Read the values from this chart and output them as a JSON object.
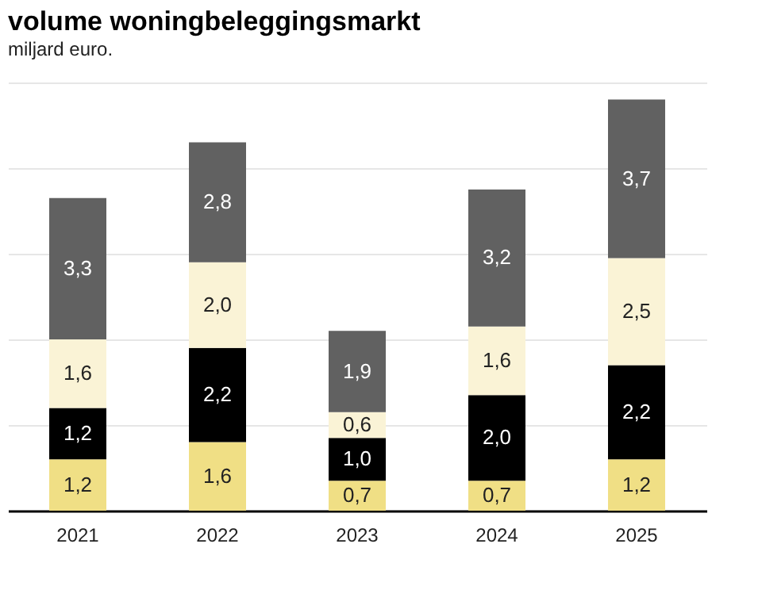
{
  "chart_data": {
    "type": "bar",
    "stacked": true,
    "title": "volume woningbeleggingsmarkt",
    "subtitle": "miljard euro.",
    "categories": [
      "2021",
      "2022",
      "2023",
      "2024",
      "2025"
    ],
    "series": [
      {
        "color": "#f0df85",
        "values": [
          1.2,
          1.6,
          0.7,
          0.7,
          1.2
        ],
        "value_labels": [
          "1,2",
          "1,6",
          "0,7",
          "0,7",
          "1,2"
        ]
      },
      {
        "color": "#000000",
        "values": [
          1.2,
          2.2,
          1.0,
          2.0,
          2.2
        ],
        "value_labels": [
          "1,2",
          "2,2",
          "1,0",
          "2,0",
          "2,2"
        ]
      },
      {
        "color": "#faf3d6",
        "values": [
          1.6,
          2.0,
          0.6,
          1.6,
          2.5
        ],
        "value_labels": [
          "1,6",
          "2,0",
          "0,6",
          "1,6",
          "2,5"
        ]
      },
      {
        "color": "#616161",
        "values": [
          3.3,
          2.8,
          1.9,
          3.2,
          3.7
        ],
        "value_labels": [
          "3,3",
          "2,8",
          "1,9",
          "3,2",
          "3,7"
        ]
      }
    ],
    "grid": "y",
    "legend": false,
    "tick_labels": "x"
  }
}
